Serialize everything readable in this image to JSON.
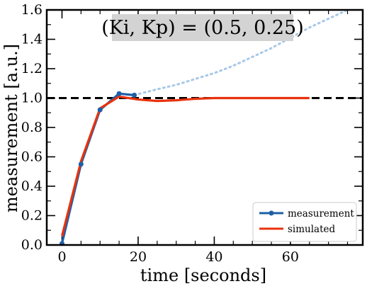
{
  "chart_data": {
    "type": "line",
    "title": "(Ki, Kp) = (0.5, 0.25)",
    "xlabel": "time [seconds]",
    "ylabel": "measurement [a.u.]",
    "xlim": [
      -4,
      79
    ],
    "ylim": [
      0.0,
      1.6
    ],
    "x_ticks": [
      0,
      20,
      40,
      60
    ],
    "x_tick_labels": [
      "0",
      "20",
      "40",
      "60"
    ],
    "y_ticks": [
      0.0,
      0.2,
      0.4,
      0.6,
      0.8,
      1.0,
      1.2,
      1.4,
      1.6
    ],
    "y_tick_labels": [
      "0.0",
      "0.2",
      "0.4",
      "0.6",
      "0.8",
      "1.0",
      "1.2",
      "1.4",
      "1.6"
    ],
    "grid": false,
    "legend_position": "lower-right",
    "setpoint": 1.0,
    "series": [
      {
        "name": "measurement",
        "color": "#1f5fa6",
        "marker": "circle",
        "x": [
          0,
          5,
          10,
          15,
          19
        ],
        "y": [
          0.01,
          0.55,
          0.92,
          1.03,
          1.02
        ]
      },
      {
        "name": "simulated",
        "color": "#e8320e",
        "x": [
          0,
          5,
          10,
          15,
          20,
          25,
          30,
          35,
          40,
          50,
          60,
          65
        ],
        "y": [
          0.06,
          0.57,
          0.93,
          1.01,
          0.99,
          0.98,
          0.985,
          0.995,
          1.0,
          1.0,
          1.0,
          1.0
        ]
      }
    ],
    "extrapolation": {
      "color": "#a8c8e8",
      "style": "dotted",
      "x": [
        19,
        25,
        30,
        35,
        40,
        45,
        50,
        55,
        60,
        65,
        70,
        75
      ],
      "y": [
        1.02,
        1.06,
        1.09,
        1.13,
        1.17,
        1.22,
        1.28,
        1.34,
        1.41,
        1.48,
        1.54,
        1.6
      ]
    },
    "setpoint_style": {
      "color": "#000000",
      "style": "dashed"
    },
    "title_box_color": "#d3d3d3"
  }
}
